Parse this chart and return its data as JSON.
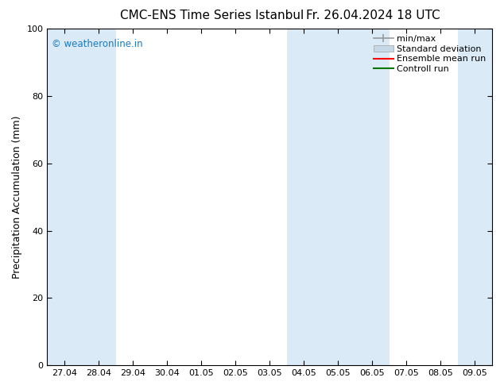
{
  "title_left": "CMC-ENS Time Series Istanbul",
  "title_right": "Fr. 26.04.2024 18 UTC",
  "ylabel": "Precipitation Accumulation (mm)",
  "ylim": [
    0,
    100
  ],
  "yticks": [
    0,
    20,
    40,
    60,
    80,
    100
  ],
  "xlabels": [
    "27.04",
    "28.04",
    "29.04",
    "30.04",
    "01.05",
    "02.05",
    "03.05",
    "04.05",
    "05.05",
    "06.05",
    "07.05",
    "08.05",
    "09.05"
  ],
  "watermark": "© weatheronline.in",
  "watermark_color": "#1a7abf",
  "bg_color": "#ffffff",
  "plot_bg_color": "#ffffff",
  "shaded_color": "#daeaf7",
  "shaded_ranges": [
    [
      0,
      2
    ],
    [
      7,
      9
    ],
    [
      9,
      10
    ],
    [
      12,
      13
    ]
  ],
  "legend_items": [
    {
      "label": "min/max",
      "color": "#aaaaaa",
      "style": "errorbar"
    },
    {
      "label": "Standard deviation",
      "color": "#c5d8e8",
      "style": "patch"
    },
    {
      "label": "Ensemble mean run",
      "color": "#ff0000",
      "style": "line"
    },
    {
      "label": "Controll run",
      "color": "#007700",
      "style": "line"
    }
  ],
  "title_fontsize": 11,
  "tick_fontsize": 8,
  "label_fontsize": 9,
  "legend_fontsize": 8
}
